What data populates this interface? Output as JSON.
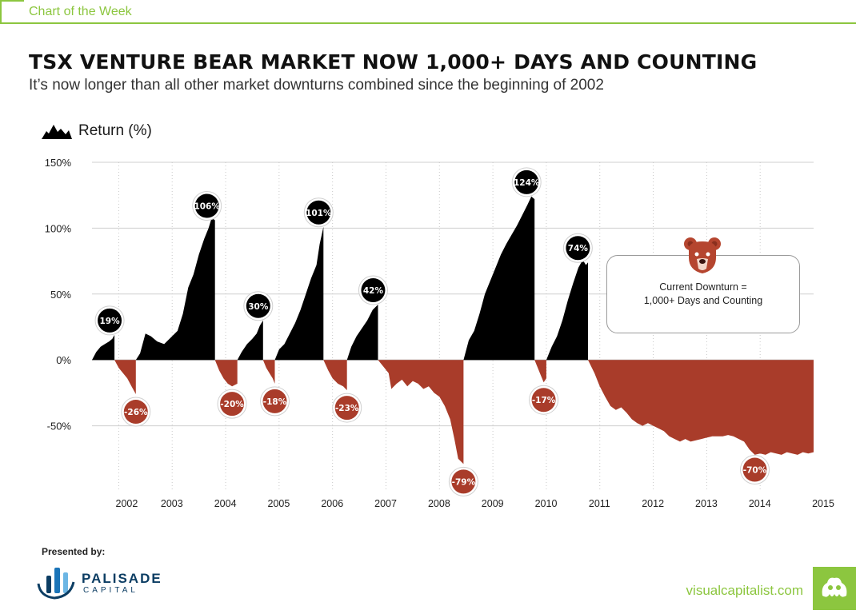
{
  "header": {
    "label": "Chart of the Week"
  },
  "headline": "TSX VENTURE BEAR MARKET NOW 1,000+ DAYS AND COUNTING",
  "subheadline": "It’s now longer than all other market downturns combined since the beginning of 2002",
  "callout": {
    "line1": "Current Downturn =",
    "line2": "1,000+ Days and Counting"
  },
  "footer": {
    "presented_by": "Presented by:",
    "sponsor_name": "PALISADE",
    "sponsor_sub": "CAPITAL",
    "site": "visualcapitalist.com"
  },
  "colors": {
    "gain": "#000000",
    "loss": "#a93c2a",
    "accent": "#8cc63f",
    "grid": "#cfcfcf"
  },
  "icons": {
    "ylabel_icon": "mountain-icon",
    "bear_icon": "bear-icon",
    "logo_icon": "palisade-logo-icon",
    "badge_icon": "visualcapitalist-badge-icon"
  },
  "chart_data": {
    "type": "area",
    "ylabel": "Return (%)",
    "ylim": [
      -100,
      150
    ],
    "yticks": [
      150,
      100,
      50,
      0,
      -50
    ],
    "ytick_labels": [
      "150%",
      "100%",
      "50%",
      "0%",
      "-50%"
    ],
    "xlim": [
      2001.5,
      2015.0
    ],
    "xtick_positions": [
      2002,
      2003,
      2004,
      2005,
      2006,
      2007,
      2008,
      2009,
      2010,
      2011,
      2012,
      2013,
      2014,
      2015
    ],
    "xtick_labels": [
      "2002",
      "2003",
      "2004",
      "2005",
      "2006",
      "2007",
      "2008",
      "2009",
      "2010",
      "2011",
      "2012",
      "2013",
      "2014",
      "2015"
    ],
    "grid": true,
    "episodes": [
      {
        "kind": "gain",
        "label": "19%",
        "peak": 19,
        "start": 2001.5,
        "end": 2001.92,
        "points": [
          [
            2001.5,
            0
          ],
          [
            2001.58,
            6
          ],
          [
            2001.66,
            10
          ],
          [
            2001.74,
            12
          ],
          [
            2001.82,
            14
          ],
          [
            2001.88,
            16
          ],
          [
            2001.92,
            19
          ]
        ]
      },
      {
        "kind": "loss",
        "label": "-26%",
        "peak": -26,
        "start": 2001.92,
        "end": 2002.32,
        "points": [
          [
            2001.92,
            0
          ],
          [
            2002.0,
            -6
          ],
          [
            2002.08,
            -10
          ],
          [
            2002.16,
            -14
          ],
          [
            2002.24,
            -20
          ],
          [
            2002.32,
            -26
          ]
        ]
      },
      {
        "kind": "gain",
        "label": "106%",
        "peak": 106,
        "start": 2002.32,
        "end": 2003.8,
        "points": [
          [
            2002.32,
            0
          ],
          [
            2002.4,
            5
          ],
          [
            2002.5,
            20
          ],
          [
            2002.6,
            18
          ],
          [
            2002.72,
            14
          ],
          [
            2002.85,
            12
          ],
          [
            2003.0,
            18
          ],
          [
            2003.1,
            22
          ],
          [
            2003.2,
            35
          ],
          [
            2003.3,
            55
          ],
          [
            2003.4,
            65
          ],
          [
            2003.5,
            80
          ],
          [
            2003.6,
            92
          ],
          [
            2003.68,
            100
          ],
          [
            2003.74,
            108
          ],
          [
            2003.8,
            106
          ]
        ]
      },
      {
        "kind": "loss",
        "label": "-20%",
        "peak": -20,
        "start": 2003.8,
        "end": 2004.22,
        "points": [
          [
            2003.8,
            0
          ],
          [
            2003.88,
            -8
          ],
          [
            2003.96,
            -14
          ],
          [
            2004.04,
            -18
          ],
          [
            2004.12,
            -20
          ],
          [
            2004.22,
            -18
          ]
        ]
      },
      {
        "kind": "gain",
        "label": "30%",
        "peak": 30,
        "start": 2004.22,
        "end": 2004.7,
        "points": [
          [
            2004.22,
            0
          ],
          [
            2004.3,
            6
          ],
          [
            2004.4,
            12
          ],
          [
            2004.5,
            16
          ],
          [
            2004.58,
            20
          ],
          [
            2004.64,
            26
          ],
          [
            2004.7,
            30
          ]
        ]
      },
      {
        "kind": "loss",
        "label": "-18%",
        "peak": -18,
        "start": 2004.7,
        "end": 2004.92,
        "points": [
          [
            2004.7,
            0
          ],
          [
            2004.76,
            -6
          ],
          [
            2004.82,
            -10
          ],
          [
            2004.88,
            -14
          ],
          [
            2004.92,
            -18
          ]
        ]
      },
      {
        "kind": "gain",
        "label": "101%",
        "peak": 101,
        "start": 2004.92,
        "end": 2005.83,
        "points": [
          [
            2004.92,
            0
          ],
          [
            2005.0,
            8
          ],
          [
            2005.1,
            12
          ],
          [
            2005.2,
            20
          ],
          [
            2005.3,
            28
          ],
          [
            2005.4,
            38
          ],
          [
            2005.5,
            50
          ],
          [
            2005.6,
            62
          ],
          [
            2005.7,
            72
          ],
          [
            2005.76,
            88
          ],
          [
            2005.83,
            101
          ]
        ]
      },
      {
        "kind": "loss",
        "label": "-23%",
        "peak": -23,
        "start": 2005.83,
        "end": 2006.27,
        "points": [
          [
            2005.83,
            0
          ],
          [
            2005.92,
            -8
          ],
          [
            2006.0,
            -14
          ],
          [
            2006.1,
            -18
          ],
          [
            2006.2,
            -20
          ],
          [
            2006.27,
            -23
          ]
        ]
      },
      {
        "kind": "gain",
        "label": "42%",
        "peak": 42,
        "start": 2006.27,
        "end": 2006.85,
        "points": [
          [
            2006.27,
            0
          ],
          [
            2006.35,
            10
          ],
          [
            2006.45,
            18
          ],
          [
            2006.55,
            24
          ],
          [
            2006.65,
            30
          ],
          [
            2006.75,
            38
          ],
          [
            2006.85,
            42
          ]
        ]
      },
      {
        "kind": "loss",
        "label": "-79%",
        "peak": -79,
        "start": 2006.85,
        "end": 2008.45,
        "points": [
          [
            2006.85,
            0
          ],
          [
            2006.95,
            -5
          ],
          [
            2007.05,
            -10
          ],
          [
            2007.1,
            -22
          ],
          [
            2007.2,
            -18
          ],
          [
            2007.3,
            -15
          ],
          [
            2007.4,
            -20
          ],
          [
            2007.5,
            -16
          ],
          [
            2007.6,
            -18
          ],
          [
            2007.7,
            -22
          ],
          [
            2007.8,
            -20
          ],
          [
            2007.9,
            -25
          ],
          [
            2008.0,
            -28
          ],
          [
            2008.1,
            -35
          ],
          [
            2008.2,
            -45
          ],
          [
            2008.28,
            -60
          ],
          [
            2008.35,
            -75
          ],
          [
            2008.45,
            -79
          ]
        ]
      },
      {
        "kind": "gain",
        "label": "124%",
        "peak": 124,
        "start": 2008.45,
        "end": 2009.78,
        "points": [
          [
            2008.45,
            0
          ],
          [
            2008.55,
            15
          ],
          [
            2008.65,
            22
          ],
          [
            2008.75,
            35
          ],
          [
            2008.85,
            50
          ],
          [
            2008.95,
            60
          ],
          [
            2009.05,
            70
          ],
          [
            2009.15,
            80
          ],
          [
            2009.25,
            88
          ],
          [
            2009.35,
            95
          ],
          [
            2009.45,
            102
          ],
          [
            2009.55,
            110
          ],
          [
            2009.65,
            118
          ],
          [
            2009.72,
            124
          ],
          [
            2009.78,
            122
          ]
        ]
      },
      {
        "kind": "loss",
        "label": "-17%",
        "peak": -17,
        "start": 2009.78,
        "end": 2010.0,
        "points": [
          [
            2009.78,
            0
          ],
          [
            2009.84,
            -6
          ],
          [
            2009.9,
            -12
          ],
          [
            2009.95,
            -17
          ],
          [
            2010.0,
            -14
          ]
        ]
      },
      {
        "kind": "gain",
        "label": "74%",
        "peak": 74,
        "start": 2010.0,
        "end": 2010.78,
        "points": [
          [
            2010.0,
            0
          ],
          [
            2010.1,
            10
          ],
          [
            2010.2,
            18
          ],
          [
            2010.3,
            30
          ],
          [
            2010.4,
            45
          ],
          [
            2010.5,
            58
          ],
          [
            2010.6,
            70
          ],
          [
            2010.68,
            76
          ],
          [
            2010.74,
            72
          ],
          [
            2010.78,
            74
          ]
        ]
      },
      {
        "kind": "loss",
        "label": "-70%",
        "peak": -70,
        "start": 2010.78,
        "end": 2015.0,
        "points": [
          [
            2010.78,
            0
          ],
          [
            2010.9,
            -10
          ],
          [
            2011.0,
            -20
          ],
          [
            2011.1,
            -28
          ],
          [
            2011.2,
            -35
          ],
          [
            2011.3,
            -38
          ],
          [
            2011.4,
            -36
          ],
          [
            2011.5,
            -40
          ],
          [
            2011.6,
            -45
          ],
          [
            2011.7,
            -48
          ],
          [
            2011.8,
            -50
          ],
          [
            2011.9,
            -48
          ],
          [
            2012.0,
            -50
          ],
          [
            2012.1,
            -52
          ],
          [
            2012.2,
            -54
          ],
          [
            2012.3,
            -58
          ],
          [
            2012.4,
            -60
          ],
          [
            2012.5,
            -62
          ],
          [
            2012.6,
            -60
          ],
          [
            2012.7,
            -62
          ],
          [
            2012.8,
            -61
          ],
          [
            2012.9,
            -60
          ],
          [
            2013.0,
            -59
          ],
          [
            2013.1,
            -58
          ],
          [
            2013.2,
            -58
          ],
          [
            2013.3,
            -58
          ],
          [
            2013.4,
            -57
          ],
          [
            2013.5,
            -58
          ],
          [
            2013.6,
            -60
          ],
          [
            2013.7,
            -62
          ],
          [
            2013.8,
            -68
          ],
          [
            2013.9,
            -72
          ],
          [
            2014.0,
            -71
          ],
          [
            2014.1,
            -72
          ],
          [
            2014.2,
            -70
          ],
          [
            2014.3,
            -71
          ],
          [
            2014.4,
            -72
          ],
          [
            2014.5,
            -70
          ],
          [
            2014.6,
            -71
          ],
          [
            2014.7,
            -72
          ],
          [
            2014.8,
            -70
          ],
          [
            2014.9,
            -71
          ],
          [
            2015.0,
            -70
          ]
        ]
      }
    ]
  }
}
